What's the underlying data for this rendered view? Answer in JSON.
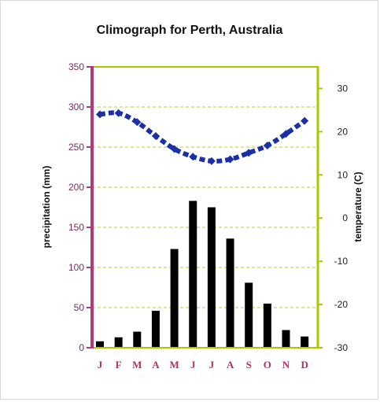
{
  "chart_data": {
    "type": "bar+line",
    "title": "Climograph for Perth, Australia",
    "categories": [
      "J",
      "F",
      "M",
      "A",
      "M",
      "J",
      "J",
      "A",
      "S",
      "O",
      "N",
      "D"
    ],
    "precipitation": {
      "axis_label": "precipitation (mm)",
      "ylim": [
        0,
        350
      ],
      "ticks": [
        0,
        50,
        100,
        150,
        200,
        250,
        300,
        350
      ],
      "values": [
        8,
        13,
        20,
        46,
        123,
        183,
        175,
        136,
        81,
        55,
        22,
        14
      ],
      "color": "#000000",
      "axis_color": "#b03a78"
    },
    "temperature": {
      "axis_label": "temperature (C)",
      "ylim": [
        -30,
        35
      ],
      "ticks": [
        -30,
        -20,
        -10,
        0,
        10,
        20,
        30
      ],
      "values": [
        24,
        24.3,
        22.2,
        19,
        16,
        14.2,
        13.2,
        13.6,
        15.1,
        16.8,
        19.5,
        22.5
      ],
      "color": "#1a2fa8",
      "axis_color": "#a8c800"
    },
    "grid": true,
    "grid_color": "#b8cc33"
  }
}
